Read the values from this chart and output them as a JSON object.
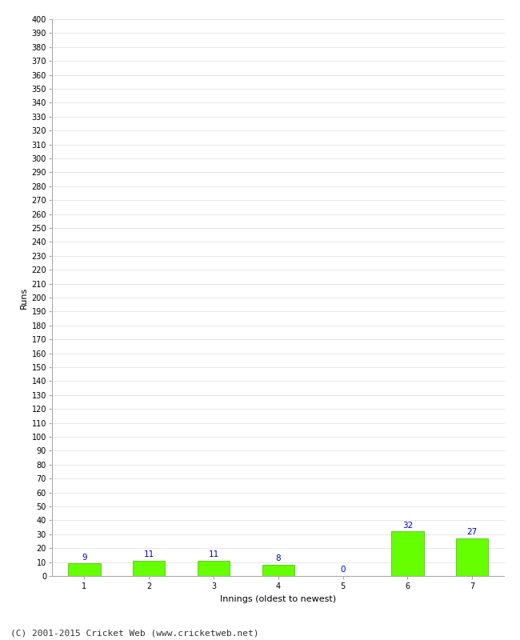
{
  "categories": [
    "1",
    "2",
    "3",
    "4",
    "5",
    "6",
    "7"
  ],
  "values": [
    9,
    11,
    11,
    8,
    0,
    32,
    27
  ],
  "bar_color": "#66ff00",
  "bar_edge_color": "#44bb00",
  "xlabel": "Innings (oldest to newest)",
  "ylabel": "Runs",
  "ylim": [
    0,
    400
  ],
  "ytick_step": 10,
  "label_color": "#0000cc",
  "label_fontsize": 7.5,
  "footer": "(C) 2001-2015 Cricket Web (www.cricketweb.net)",
  "footer_fontsize": 8,
  "axis_fontsize": 8,
  "tick_fontsize": 7,
  "background_color": "#ffffff",
  "grid_color": "#dddddd"
}
